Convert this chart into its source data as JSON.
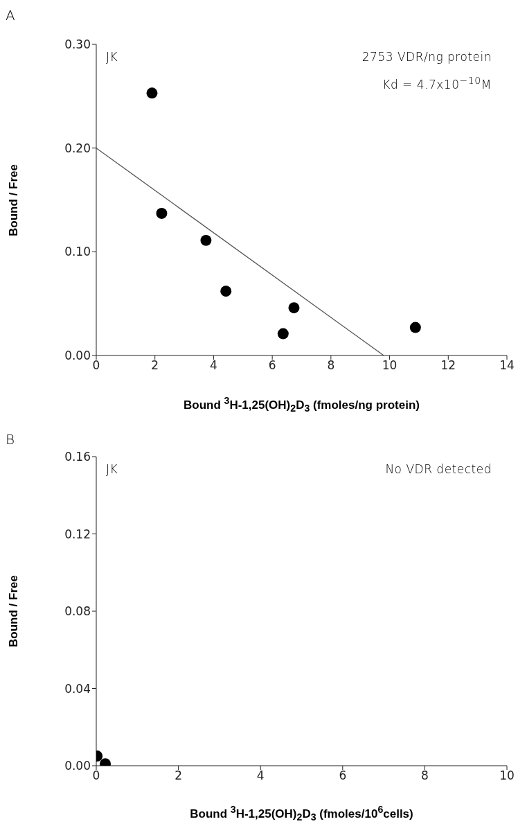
{
  "chart_data": [
    {
      "type": "scatter",
      "title": "A",
      "xlabel": "Bound $^{3}$H-1,25(OH)$_{2}$D$_{3}$ (fmoles/ng protein)",
      "ylabel": "Bound / Free",
      "annotations": [
        "JK",
        "2753 VDR/ng protein",
        "Kd = 4.7x10$^{−10}$M"
      ],
      "xlim": [
        0,
        14
      ],
      "xticks": [
        0,
        2,
        4,
        6,
        8,
        10,
        12,
        14
      ],
      "ylim": [
        0,
        0.3
      ],
      "yticks": [
        {
          "value": 0,
          "label": "0.00"
        },
        {
          "value": 0.1,
          "label": "0.10"
        },
        {
          "value": 0.2,
          "label": "0.20"
        },
        {
          "value": 0.3,
          "label": "0.30"
        }
      ],
      "series": [
        {
          "type": "scatter",
          "marker": "circle",
          "color": "#000000",
          "x": [
            1.9,
            2.23,
            3.74,
            4.42,
            6.37,
            6.74,
            10.88
          ],
          "values": [
            0.253,
            0.137,
            0.111,
            0.062,
            0.021,
            0.046,
            0.027
          ]
        },
        {
          "type": "line",
          "marker": "none",
          "color": "#555555",
          "x": [
            0,
            9.8
          ],
          "values": [
            0.2,
            0
          ]
        }
      ]
    },
    {
      "type": "scatter",
      "title": "B",
      "xlabel": "Bound $^{3}$H-1,25(OH)$_{2}$D$_{3}$ (fmoles/10$^{6}$cells)",
      "ylabel": "Bound / Free",
      "annotations": [
        "JK",
        "No VDR detected"
      ],
      "xlim": [
        0,
        10
      ],
      "xticks": [
        0,
        2,
        4,
        6,
        8,
        10
      ],
      "ylim": [
        0,
        0.16
      ],
      "yticks": [
        {
          "value": 0,
          "label": "0.00"
        },
        {
          "value": 0.04,
          "label": "0.04"
        },
        {
          "value": 0.08,
          "label": "0.08"
        },
        {
          "value": 0.12,
          "label": "0.12"
        },
        {
          "value": 0.16,
          "label": "0.16"
        }
      ],
      "series": [
        {
          "type": "scatter",
          "marker": "circle",
          "color": "#000000",
          "x": [
            0.02,
            0.22
          ],
          "values": [
            0.005,
            0.001
          ]
        }
      ]
    }
  ]
}
